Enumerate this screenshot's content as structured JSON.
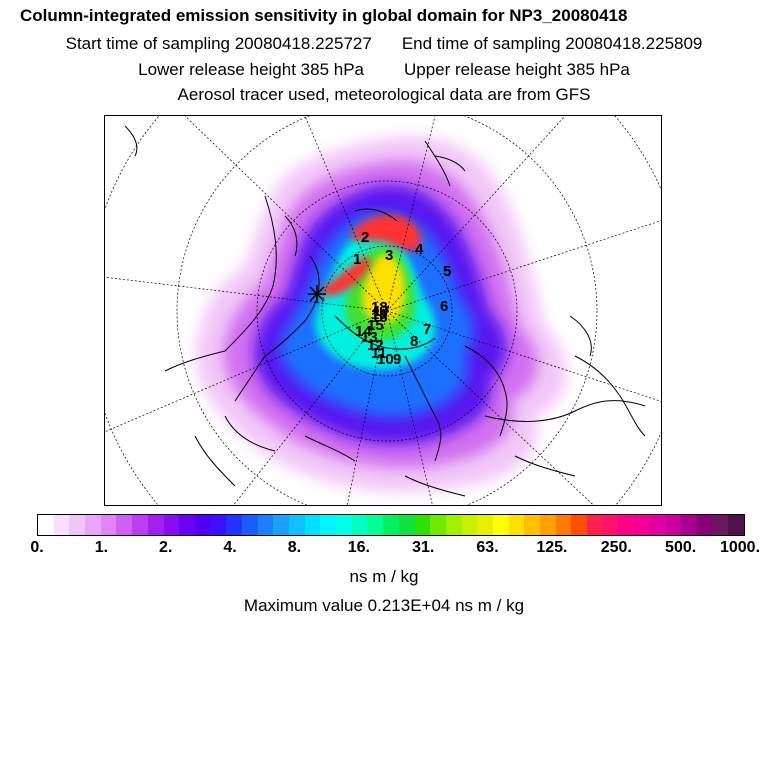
{
  "header": {
    "title": "Column-integrated emission sensitivity in global domain for NP3_20080418",
    "start_label": "Start time of sampling 20080418.225727",
    "end_label": "End time of sampling 20080418.225809",
    "lower_label": "Lower release height  385 hPa",
    "upper_label": "Upper release height  385 hPa",
    "tracer_line": "Aerosol tracer used, meteorological data are from GFS"
  },
  "map": {
    "markers": [
      "1",
      "2",
      "3",
      "4",
      "5",
      "6",
      "7",
      "8",
      "9",
      "10",
      "11",
      "12",
      "13",
      "14",
      "15",
      "16",
      "17",
      "18",
      "19"
    ]
  },
  "colorbar": {
    "ticks": [
      "0.",
      "1.",
      "2.",
      "4.",
      "8.",
      "16.",
      "31.",
      "63.",
      "125.",
      "250.",
      "500.",
      "1000."
    ],
    "colors": [
      "#ffffff",
      "#f6e0fb",
      "#f0c6f9",
      "#e9a6f7",
      "#e284f5",
      "#d160f2",
      "#bd3df0",
      "#a320ef",
      "#8a0cf2",
      "#6a00f4",
      "#5000f8",
      "#3a10ff",
      "#2235ff",
      "#1a5cff",
      "#1a80ff",
      "#1aa0ff",
      "#10c0ff",
      "#00e0ff",
      "#00f6ff",
      "#00ffe8",
      "#00ffc0",
      "#00ff98",
      "#00f060",
      "#10e040",
      "#30e000",
      "#70e800",
      "#a0f000",
      "#c8f000",
      "#e8f000",
      "#ffff00",
      "#ffe000",
      "#ffc000",
      "#ffa000",
      "#ff7a00",
      "#ff5000",
      "#ff2050",
      "#ff1070",
      "#ff0088",
      "#f00096",
      "#e000a0",
      "#c800a0",
      "#a80090",
      "#880078",
      "#681860",
      "#501048"
    ]
  },
  "units": "ns m / kg",
  "max_value_line": "Maximum value  0.213E+04 ns m / kg"
}
